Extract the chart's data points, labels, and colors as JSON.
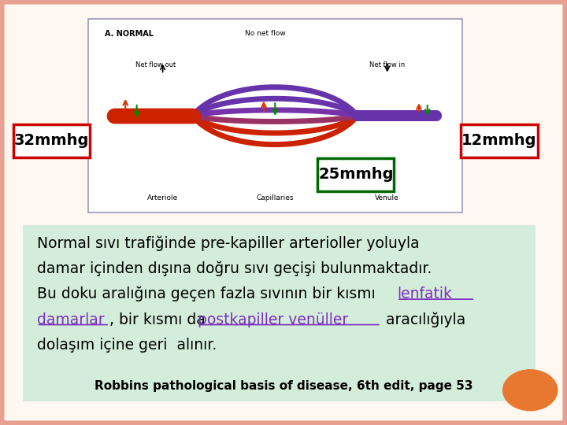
{
  "slide_bg": "#fff8f0",
  "label_32": "32mmhg",
  "label_12": "12mmhg",
  "label_25": "25mmhg",
  "box_32_color": "#cc0000",
  "box_12_color": "#cc0000",
  "box_25_color": "#006600",
  "main_text_line1": "Normal sıvı trafiğinde pre-kapiller arterioller yoluyla",
  "main_text_line2": "damar içinden dışına doğru sıvı geçişi bulunmaktadır.",
  "main_text_line3_a": "Bu doku aralığına geçen fazla sıvının bir kısmı ",
  "main_text_line3_b": "lenfatik",
  "main_text_line4_a": "damarlar",
  "main_text_line4_b": ", bir kısmı da ",
  "main_text_line4_c": "postkapiller venüller",
  "main_text_line4_d": " aracılığıyla",
  "main_text_line5": "dolaşım içine geri  alınır.",
  "citation": "Robbins pathological basis of disease, 6th edit, page 53",
  "link_color": "#7b2fbe",
  "text_fontsize": 13.5,
  "citation_fontsize": 11,
  "border_color": "#e8a090",
  "text_block_bg": "#d4edda",
  "orange_circle_color": "#e87830",
  "diagram_border_color": "#9999bb",
  "diagram_bg": "#ffffff"
}
